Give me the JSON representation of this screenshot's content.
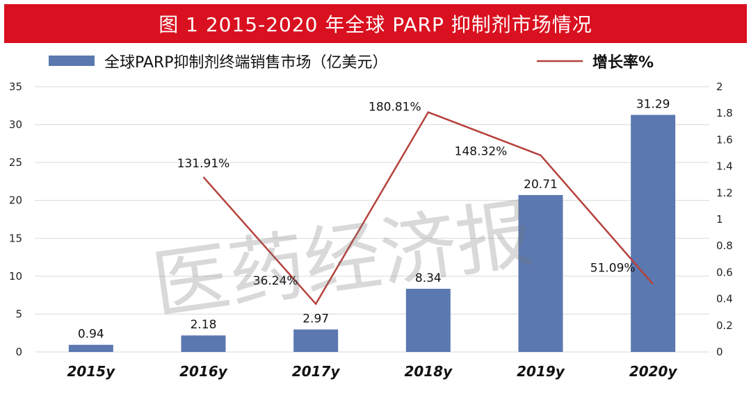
{
  "title": "图 1    2015-2020 年全球 PARP 抑制剂市场情况",
  "watermark": "医药经济报",
  "colors": {
    "title_bg": "#d9101f",
    "bar": "#5b78b0",
    "line": "#b5413c",
    "grid": "#d9d9d9"
  },
  "chart_data": {
    "type": "bar",
    "categories": [
      "2015y",
      "2016y",
      "2017y",
      "2018y",
      "2019y",
      "2020y"
    ],
    "series": [
      {
        "name": "全球PARP抑制剂终端销售市场（亿美元）",
        "type": "bar",
        "axis": "left",
        "values": [
          0.94,
          2.18,
          2.97,
          8.34,
          20.71,
          31.29
        ],
        "labels": [
          "0.94",
          "2.18",
          "2.97",
          "8.34",
          "20.71",
          "31.29"
        ]
      },
      {
        "name": "增长率%",
        "type": "line",
        "axis": "right",
        "x": [
          "2016y",
          "2017y",
          "2018y",
          "2019y",
          "2020y"
        ],
        "values": [
          1.3191,
          0.3624,
          1.8081,
          1.4832,
          0.5109
        ],
        "labels": [
          "131.91%",
          "36.24%",
          "180.81%",
          "148.32%",
          "51.09%"
        ]
      }
    ],
    "y_left": {
      "min": 0,
      "max": 35,
      "ticks": [
        "0",
        "5",
        "10",
        "15",
        "20",
        "25",
        "30",
        "35"
      ]
    },
    "y_right": {
      "min": 0,
      "max": 2,
      "ticks": [
        "0",
        "0.2",
        "0.4",
        "0.6",
        "0.8",
        "1",
        "1.2",
        "1.4",
        "1.6",
        "1.8",
        "2"
      ]
    },
    "grid": true,
    "legend_position": "top"
  }
}
